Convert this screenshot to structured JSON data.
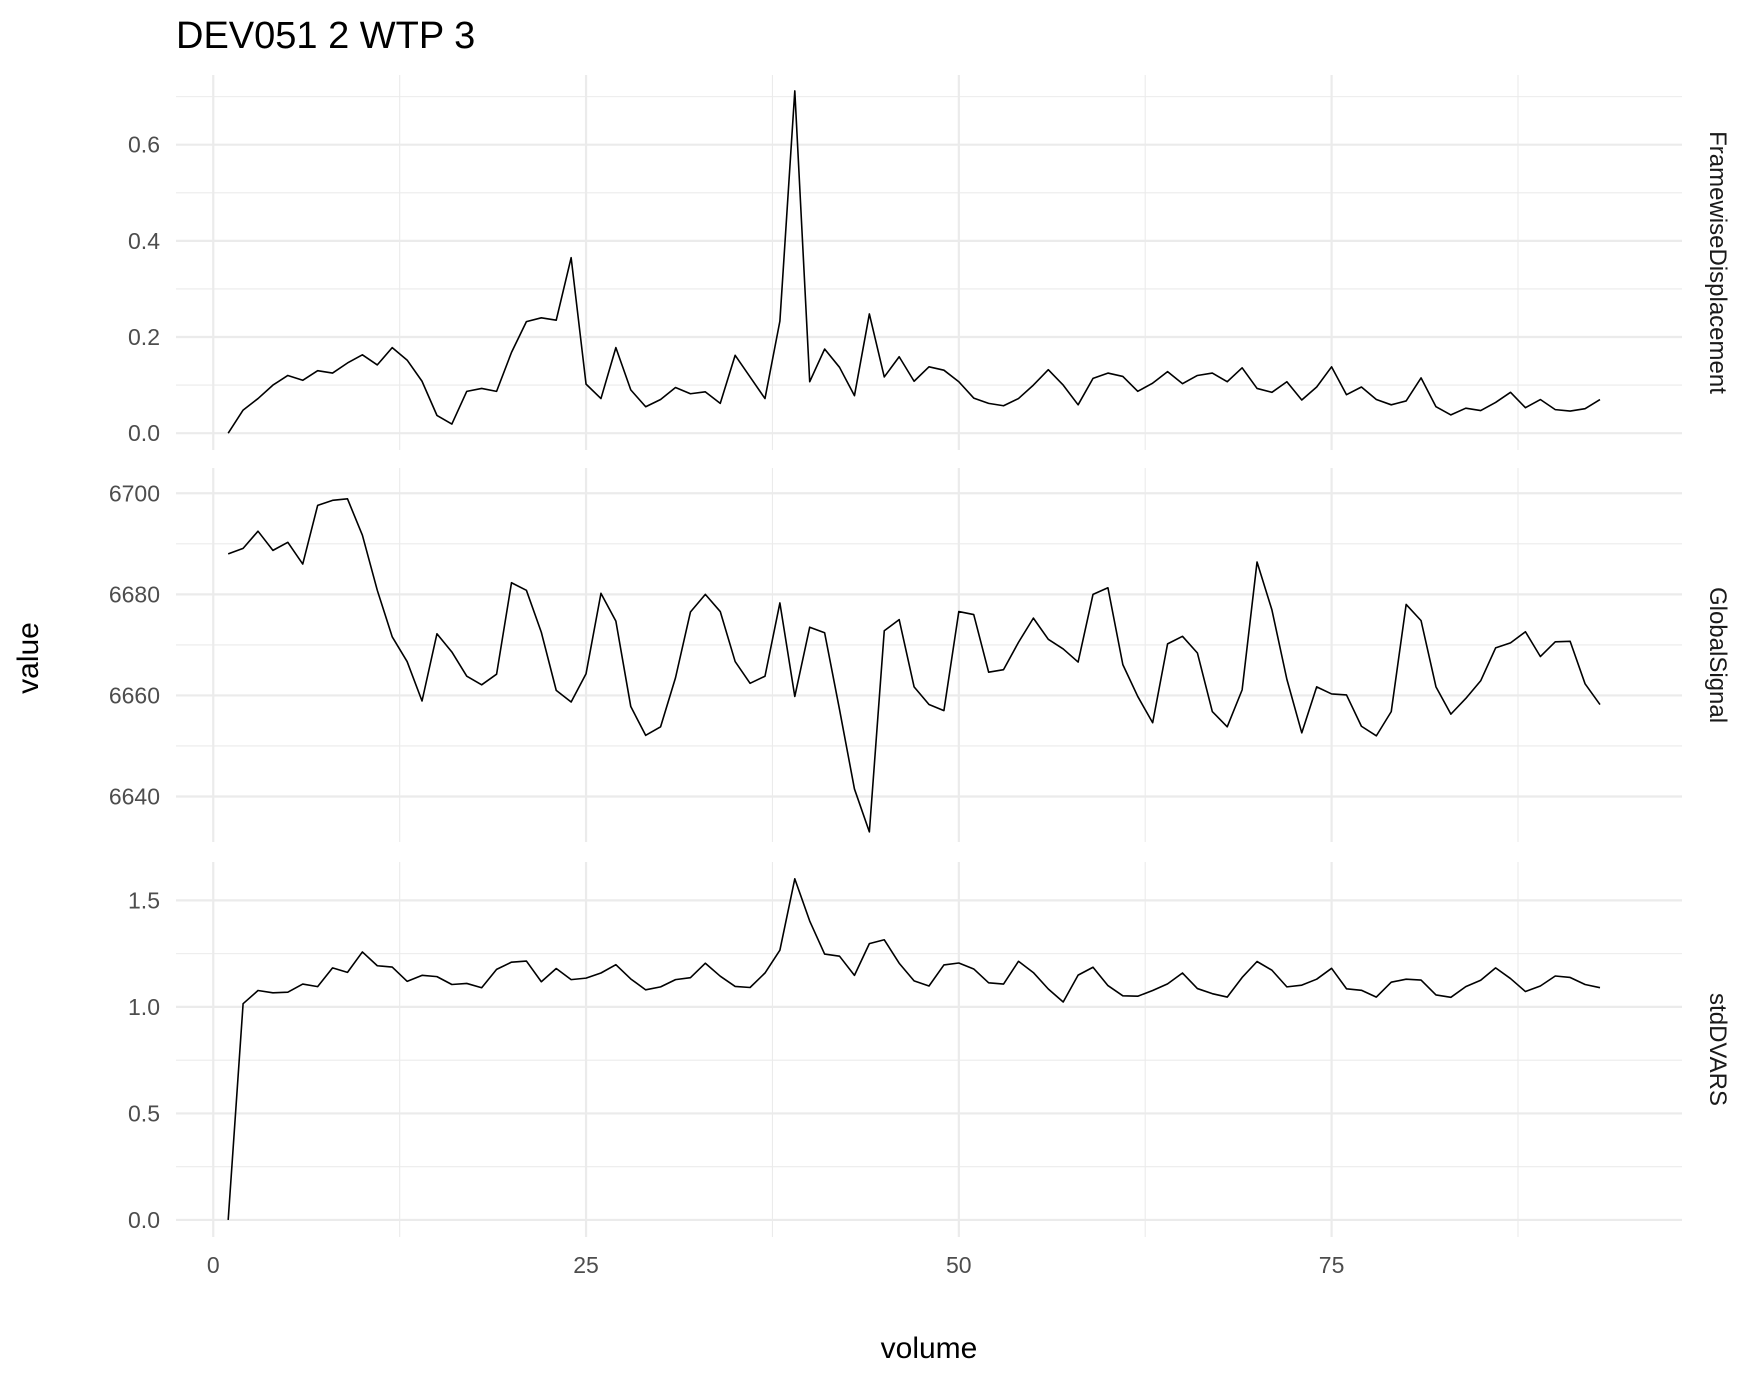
{
  "chart_data": {
    "type": "line",
    "title": "DEV051  2  WTP  3",
    "xlabel": "volume",
    "ylabel": "value",
    "xlim": [
      -2.5,
      98.5
    ],
    "x_ticks": [
      0,
      25,
      50,
      75
    ],
    "x_tick_labels": [
      "0",
      "25",
      "50",
      "75"
    ],
    "grid": true,
    "facets": [
      {
        "name": "FramewiseDisplacement",
        "ylim": [
          -0.035,
          0.745
        ],
        "y_ticks": [
          0.0,
          0.2,
          0.4,
          0.6
        ],
        "y_tick_labels": [
          "0.0",
          "0.2",
          "0.4",
          "0.6"
        ],
        "values": [
          0,
          0.048,
          0.072,
          0.1,
          0.12,
          0.11,
          0.13,
          0.125,
          0.146,
          0.163,
          0.142,
          0.178,
          0.152,
          0.108,
          0.037,
          0.019,
          0.087,
          0.093,
          0.087,
          0.168,
          0.232,
          0.24,
          0.235,
          0.365,
          0.102,
          0.072,
          0.178,
          0.09,
          0.055,
          0.07,
          0.095,
          0.082,
          0.086,
          0.062,
          0.162,
          0.117,
          0.072,
          0.233,
          0.712,
          0.107,
          0.175,
          0.137,
          0.078,
          0.248,
          0.117,
          0.159,
          0.108,
          0.138,
          0.131,
          0.107,
          0.073,
          0.062,
          0.057,
          0.072,
          0.1,
          0.132,
          0.1,
          0.059,
          0.114,
          0.125,
          0.118,
          0.087,
          0.104,
          0.128,
          0.103,
          0.12,
          0.125,
          0.107,
          0.136,
          0.093,
          0.085,
          0.107,
          0.069,
          0.096,
          0.138,
          0.08,
          0.096,
          0.07,
          0.059,
          0.067,
          0.115,
          0.055,
          0.038,
          0.052,
          0.047,
          0.064,
          0.085,
          0.053,
          0.07,
          0.049,
          0.046,
          0.051,
          0.07
        ]
      },
      {
        "name": "GlobalSignal",
        "ylim": [
          6631,
          6705
        ],
        "y_ticks": [
          6640,
          6660,
          6680,
          6700
        ],
        "y_tick_labels": [
          "6640",
          "6660",
          "6680",
          "6700"
        ],
        "values": [
          6688,
          6689.1,
          6692.5,
          6688.7,
          6690.3,
          6686,
          6697.6,
          6698.6,
          6698.9,
          6691.7,
          6680.8,
          6671.6,
          6666.7,
          6658.9,
          6672.2,
          6668.6,
          6663.8,
          6662.1,
          6664.2,
          6682.3,
          6680.8,
          6672.5,
          6661,
          6658.7,
          6664.3,
          6680.2,
          6674.7,
          6657.8,
          6652.1,
          6653.8,
          6663.5,
          6676.5,
          6680,
          6676.6,
          6666.7,
          6662.4,
          6663.8,
          6678.3,
          6659.8,
          6673.5,
          6672.4,
          6657.2,
          6641.5,
          6633,
          6672.8,
          6675,
          6661.7,
          6658.2,
          6657,
          6676.6,
          6676,
          6664.6,
          6665.1,
          6670.5,
          6675.3,
          6671.1,
          6669.2,
          6666.6,
          6680,
          6681.3,
          6666.1,
          6659.8,
          6654.6,
          6670.2,
          6671.7,
          6668.4,
          6656.8,
          6653.8,
          6661.1,
          6686.4,
          6676.9,
          6663.2,
          6652.6,
          6661.7,
          6660.3,
          6660.1,
          6653.9,
          6652,
          6656.8,
          6678,
          6674.8,
          6661.7,
          6656.3,
          6659.4,
          6662.9,
          6669.4,
          6670.4,
          6672.6,
          6667.7,
          6670.6,
          6670.7,
          6662.3,
          6658.2
        ]
      },
      {
        "name": "stdDVARS",
        "ylim": [
          -0.08,
          1.68
        ],
        "y_ticks": [
          0.0,
          0.5,
          1.0,
          1.5
        ],
        "y_tick_labels": [
          "0.0",
          "0.5",
          "1.0",
          "1.5"
        ],
        "values": [
          0,
          1.015,
          1.077,
          1.066,
          1.069,
          1.107,
          1.095,
          1.183,
          1.162,
          1.258,
          1.193,
          1.187,
          1.12,
          1.148,
          1.142,
          1.105,
          1.11,
          1.09,
          1.176,
          1.21,
          1.215,
          1.118,
          1.18,
          1.128,
          1.135,
          1.159,
          1.198,
          1.131,
          1.08,
          1.094,
          1.128,
          1.137,
          1.205,
          1.144,
          1.096,
          1.091,
          1.159,
          1.266,
          1.601,
          1.403,
          1.248,
          1.238,
          1.148,
          1.297,
          1.315,
          1.205,
          1.122,
          1.098,
          1.197,
          1.206,
          1.178,
          1.113,
          1.107,
          1.214,
          1.161,
          1.084,
          1.023,
          1.149,
          1.186,
          1.1,
          1.052,
          1.05,
          1.077,
          1.108,
          1.159,
          1.086,
          1.062,
          1.046,
          1.138,
          1.213,
          1.172,
          1.094,
          1.102,
          1.13,
          1.181,
          1.085,
          1.078,
          1.046,
          1.116,
          1.13,
          1.126,
          1.056,
          1.045,
          1.095,
          1.125,
          1.183,
          1.133,
          1.072,
          1.098,
          1.145,
          1.138,
          1.105,
          1.09
        ]
      }
    ]
  }
}
